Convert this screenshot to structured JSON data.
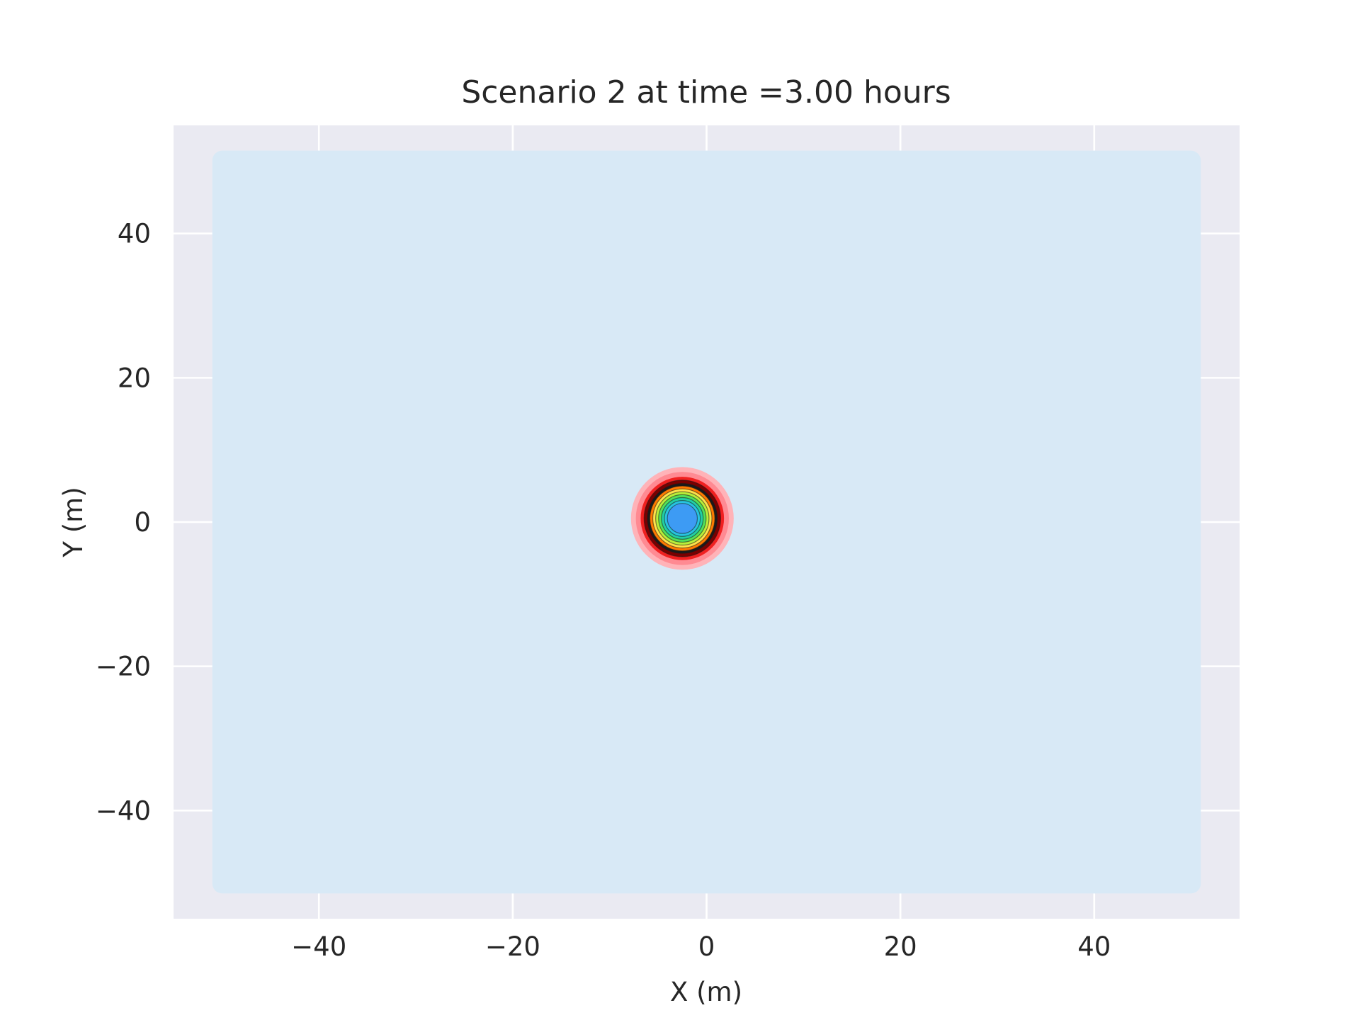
{
  "chart_data": {
    "type": "heatmap",
    "title": "Scenario 2 at time =3.00 hours",
    "xlabel": "X (m)",
    "ylabel": "Y (m)",
    "xlim": [
      -55,
      55
    ],
    "ylim": [
      -55,
      55
    ],
    "grid": true,
    "x_ticks": [
      {
        "value": -40,
        "label": "−40"
      },
      {
        "value": -20,
        "label": "−20"
      },
      {
        "value": 0,
        "label": "0"
      },
      {
        "value": 20,
        "label": "20"
      },
      {
        "value": 40,
        "label": "40"
      }
    ],
    "y_ticks": [
      {
        "value": -40,
        "label": "−40"
      },
      {
        "value": -20,
        "label": "−20"
      },
      {
        "value": 0,
        "label": "0"
      },
      {
        "value": 20,
        "label": "20"
      },
      {
        "value": 40,
        "label": "40"
      }
    ],
    "domain": {
      "x": [
        -51,
        51
      ],
      "y": [
        -51.5,
        51.5
      ]
    },
    "plume_center": {
      "x": -2.5,
      "y": 0.5
    },
    "contour_rings": [
      {
        "radius": 5.3,
        "color": "#ffb3b8"
      },
      {
        "radius": 4.8,
        "color": "#ff8a92"
      },
      {
        "radius": 4.3,
        "color": "#f02020"
      },
      {
        "radius": 3.95,
        "color": "#7a0000"
      },
      {
        "radius": 3.6,
        "color": "#1a1a1a"
      },
      {
        "radius": 3.35,
        "color": "#ff7a00"
      },
      {
        "radius": 3.05,
        "color": "#ffe24a"
      },
      {
        "radius": 2.75,
        "color": "#b8ef3a"
      },
      {
        "radius": 2.45,
        "color": "#52e05a"
      },
      {
        "radius": 2.15,
        "color": "#22cfa4"
      },
      {
        "radius": 1.85,
        "color": "#27c4e0"
      },
      {
        "radius": 1.55,
        "color": "#3d9bf4"
      }
    ],
    "colors": {
      "axes_background": "#eaeaf2",
      "grid": "#ffffff",
      "domain_fill": "#d8e9f6",
      "text": "#262626"
    }
  }
}
